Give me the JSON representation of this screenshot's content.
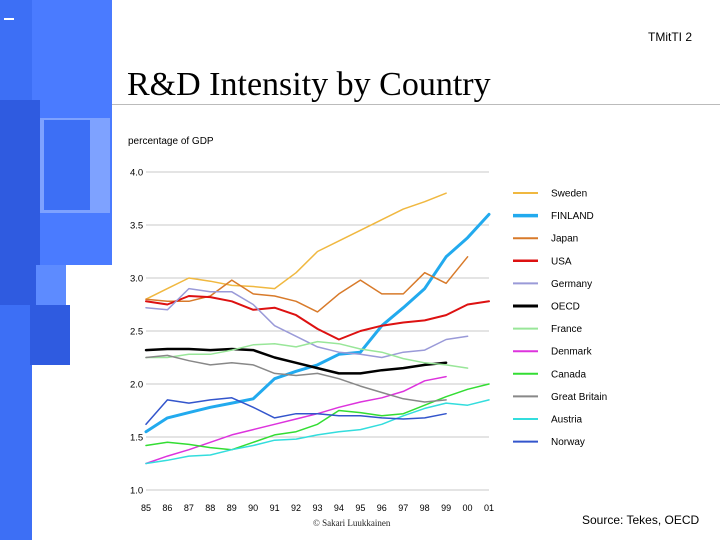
{
  "slide": {
    "number": "TMitTI 2",
    "title": "R&D Intensity by Country",
    "copyright": "© Sakari Luukkainen",
    "source": "Source: Tekes, OECD"
  },
  "chart_data": {
    "type": "line",
    "ylabel": "percentage of GDP",
    "ylim": [
      1.0,
      4.0
    ],
    "yticks": [
      "1.0",
      "1.5",
      "2.0",
      "2.5",
      "3.0",
      "3.5",
      "4.0"
    ],
    "categories": [
      "85",
      "86",
      "87",
      "88",
      "89",
      "90",
      "91",
      "92",
      "93",
      "94",
      "95",
      "96",
      "97",
      "98",
      "99",
      "00",
      "01"
    ],
    "grid": true,
    "legend_position": "right",
    "series": [
      {
        "name": "Sweden",
        "color": "#f0b840",
        "width": 1.5,
        "values": [
          2.8,
          2.9,
          3.0,
          2.97,
          2.93,
          2.92,
          2.9,
          3.05,
          3.25,
          3.35,
          3.45,
          3.55,
          3.65,
          3.72,
          3.8,
          null,
          null
        ]
      },
      {
        "name": "FINLAND",
        "color": "#22aaee",
        "width": 3,
        "values": [
          1.55,
          1.68,
          1.73,
          1.78,
          1.82,
          1.86,
          2.05,
          2.12,
          2.18,
          2.28,
          2.3,
          2.55,
          2.72,
          2.9,
          3.2,
          3.38,
          3.6
        ]
      },
      {
        "name": "Japan",
        "color": "#d87a2a",
        "width": 1.5,
        "values": [
          2.8,
          2.78,
          2.78,
          2.83,
          2.98,
          2.85,
          2.83,
          2.78,
          2.68,
          2.85,
          2.98,
          2.85,
          2.85,
          3.05,
          2.95,
          3.2,
          null
        ]
      },
      {
        "name": "USA",
        "color": "#dd1111",
        "width": 2,
        "values": [
          2.78,
          2.75,
          2.83,
          2.82,
          2.78,
          2.7,
          2.72,
          2.65,
          2.52,
          2.42,
          2.5,
          2.55,
          2.58,
          2.6,
          2.65,
          2.75,
          2.78
        ]
      },
      {
        "name": "Germany",
        "color": "#9a9ad8",
        "width": 1.5,
        "values": [
          2.72,
          2.7,
          2.9,
          2.87,
          2.87,
          2.75,
          2.55,
          2.45,
          2.35,
          2.3,
          2.28,
          2.25,
          2.3,
          2.32,
          2.42,
          2.45,
          null
        ]
      },
      {
        "name": "OECD",
        "color": "#000000",
        "width": 2.5,
        "values": [
          2.32,
          2.33,
          2.33,
          2.32,
          2.33,
          2.32,
          2.25,
          2.2,
          2.15,
          2.1,
          2.1,
          2.13,
          2.15,
          2.18,
          2.2,
          null,
          null
        ]
      },
      {
        "name": "France",
        "color": "#99e699",
        "width": 1.5,
        "values": [
          2.25,
          2.25,
          2.28,
          2.28,
          2.32,
          2.37,
          2.38,
          2.35,
          2.4,
          2.38,
          2.33,
          2.3,
          2.24,
          2.2,
          2.18,
          2.15,
          null
        ]
      },
      {
        "name": "Denmark",
        "color": "#dd33dd",
        "width": 1.5,
        "values": [
          1.25,
          1.32,
          1.38,
          1.45,
          1.52,
          1.57,
          1.62,
          1.67,
          1.72,
          1.78,
          1.83,
          1.87,
          1.93,
          2.03,
          2.07,
          null,
          null
        ]
      },
      {
        "name": "Canada",
        "color": "#33dd33",
        "width": 1.5,
        "values": [
          1.42,
          1.45,
          1.43,
          1.4,
          1.38,
          1.45,
          1.52,
          1.55,
          1.62,
          1.75,
          1.73,
          1.7,
          1.72,
          1.8,
          1.88,
          1.95,
          2.0
        ]
      },
      {
        "name": "Great Britain",
        "color": "#888888",
        "width": 1.5,
        "values": [
          2.25,
          2.27,
          2.22,
          2.18,
          2.2,
          2.18,
          2.1,
          2.08,
          2.1,
          2.05,
          1.98,
          1.92,
          1.86,
          1.83,
          1.85,
          null,
          null
        ]
      },
      {
        "name": "Austria",
        "color": "#33dddd",
        "width": 1.5,
        "values": [
          1.25,
          1.28,
          1.32,
          1.33,
          1.38,
          1.42,
          1.47,
          1.48,
          1.52,
          1.55,
          1.57,
          1.62,
          1.7,
          1.77,
          1.82,
          1.8,
          1.85
        ]
      },
      {
        "name": "Norway",
        "color": "#3355cc",
        "width": 1.5,
        "values": [
          1.62,
          1.85,
          1.82,
          1.85,
          1.87,
          1.78,
          1.68,
          1.72,
          1.72,
          1.7,
          1.7,
          1.68,
          1.67,
          1.68,
          1.72,
          null,
          null
        ]
      }
    ]
  }
}
